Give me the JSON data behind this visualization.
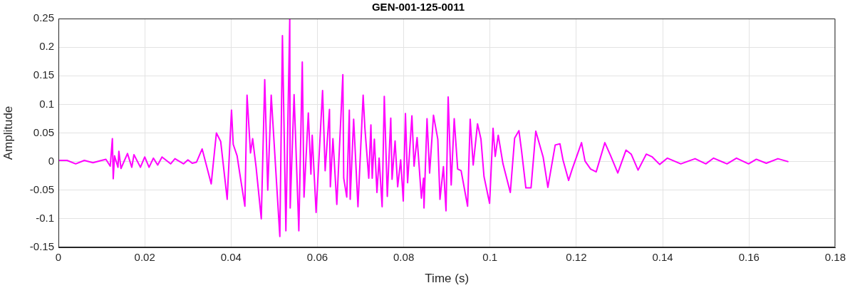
{
  "chart_data": {
    "type": "line",
    "title": "GEN-001-125-0011",
    "xlabel": "Time (s)",
    "ylabel": "Amplitude",
    "xlim": [
      0,
      0.18
    ],
    "xticks": [
      0,
      0.02,
      0.04,
      0.06,
      0.08,
      0.1,
      0.12,
      0.14,
      0.16,
      0.18
    ],
    "ylim": [
      -0.15,
      0.25
    ],
    "yticks": [
      -0.15,
      -0.1,
      -0.05,
      0,
      0.05,
      0.1,
      0.15,
      0.2,
      0.25
    ],
    "grid": true,
    "marker": "none",
    "line_style": "solid",
    "series": [
      {
        "color": "#ff00ff",
        "x": [
          0,
          0.002,
          0.004,
          0.006,
          0.008,
          0.01,
          0.011,
          0.012,
          0.0125,
          0.0127,
          0.013,
          0.0138,
          0.014,
          0.0145,
          0.016,
          0.017,
          0.0175,
          0.019,
          0.02,
          0.021,
          0.022,
          0.023,
          0.024,
          0.026,
          0.027,
          0.029,
          0.03,
          0.031,
          0.032,
          0.0333,
          0.0354,
          0.0366,
          0.0376,
          0.0391,
          0.0401,
          0.0405,
          0.0414,
          0.042,
          0.0432,
          0.0437,
          0.0445,
          0.045,
          0.0458,
          0.047,
          0.0478,
          0.0485,
          0.0493,
          0.0513,
          0.0519,
          0.0527,
          0.0536,
          0.0537,
          0.0546,
          0.0557,
          0.0565,
          0.0569,
          0.0579,
          0.0585,
          0.0588,
          0.0597,
          0.0612,
          0.0618,
          0.0628,
          0.063,
          0.0636,
          0.0645,
          0.0659,
          0.0661,
          0.0668,
          0.0674,
          0.0676,
          0.0684,
          0.0694,
          0.0706,
          0.071,
          0.0719,
          0.0724,
          0.0727,
          0.0732,
          0.0738,
          0.0743,
          0.075,
          0.0755,
          0.0762,
          0.077,
          0.0773,
          0.078,
          0.0786,
          0.0793,
          0.0799,
          0.0804,
          0.0809,
          0.0819,
          0.0824,
          0.0831,
          0.0841,
          0.0846,
          0.0847,
          0.0854,
          0.086,
          0.0869,
          0.0879,
          0.0884,
          0.0892,
          0.0898,
          0.0903,
          0.091,
          0.0917,
          0.0925,
          0.0933,
          0.0948,
          0.0954,
          0.0961,
          0.0971,
          0.0979,
          0.0986,
          0.0999,
          0.1007,
          0.1012,
          0.1019,
          0.103,
          0.1047,
          0.1057,
          0.1067,
          0.1073,
          0.1083,
          0.1095,
          0.1106,
          0.1123,
          0.1134,
          0.1151,
          0.1162,
          0.1169,
          0.1182,
          0.119,
          0.1212,
          0.122,
          0.1233,
          0.1246,
          0.1266,
          0.1279,
          0.1296,
          0.1315,
          0.1327,
          0.1343,
          0.1362,
          0.1376,
          0.1393,
          0.1411,
          0.1442,
          0.1475,
          0.15,
          0.1518,
          0.1549,
          0.1571,
          0.1599,
          0.1617,
          0.164,
          0.1667,
          0.169
        ],
        "values": [
          0.002,
          0.002,
          -0.004,
          0.002,
          -0.002,
          0.002,
          0.004,
          -0.008,
          0.04,
          -0.03,
          0.01,
          -0.01,
          0.018,
          -0.012,
          0.014,
          -0.01,
          0.012,
          -0.01,
          0.008,
          -0.01,
          0.006,
          -0.006,
          0.008,
          -0.004,
          0.005,
          -0.004,
          0.003,
          -0.003,
          -0.001,
          0.022,
          -0.039,
          0.05,
          0.035,
          -0.066,
          0.09,
          0.03,
          0.01,
          -0.02,
          -0.078,
          0.116,
          0.015,
          0.04,
          -0.01,
          -0.1,
          0.143,
          -0.05,
          0.116,
          -0.131,
          0.22,
          -0.121,
          0.25,
          -0.081,
          0.117,
          -0.121,
          0.174,
          -0.062,
          0.085,
          -0.022,
          0.046,
          -0.089,
          0.124,
          -0.016,
          0.091,
          -0.044,
          0.04,
          -0.075,
          0.152,
          -0.029,
          -0.062,
          0.09,
          -0.066,
          0.074,
          -0.079,
          0.116,
          0.059,
          -0.029,
          0.064,
          -0.029,
          0.039,
          -0.054,
          0.006,
          -0.079,
          0.114,
          -0.061,
          0.076,
          -0.031,
          0.036,
          -0.044,
          0.003,
          -0.069,
          0.084,
          -0.037,
          0.08,
          -0.008,
          0.042,
          -0.064,
          -0.029,
          -0.081,
          0.075,
          -0.02,
          0.081,
          0.039,
          -0.066,
          -0.009,
          -0.086,
          0.113,
          -0.041,
          0.075,
          -0.013,
          -0.016,
          -0.078,
          0.074,
          -0.006,
          0.066,
          0.039,
          -0.026,
          -0.073,
          0.058,
          0.009,
          0.046,
          -0.004,
          -0.054,
          0.041,
          0.054,
          0.019,
          -0.046,
          -0.046,
          0.053,
          0.008,
          -0.045,
          0.029,
          0.031,
          0.003,
          -0.033,
          -0.014,
          0.033,
          0.001,
          -0.013,
          -0.018,
          0.033,
          0.011,
          -0.02,
          0.02,
          0.013,
          -0.015,
          0.013,
          0.008,
          -0.005,
          0.006,
          -0.004,
          0.005,
          -0.004,
          0.006,
          -0.004,
          0.006,
          -0.004,
          0.004,
          -0.003,
          0.005,
          0
        ]
      }
    ]
  }
}
